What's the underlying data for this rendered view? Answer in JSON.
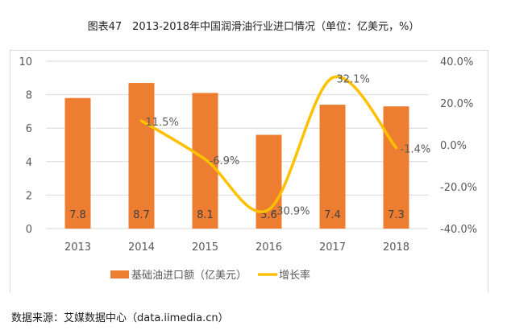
{
  "title": "图表47　2013-2018年中国润滑油行业进口情况（单位：亿美元，%）",
  "source": "数据来源：艾媒数据中心（data.iimedia.cn）",
  "chart_data": {
    "type": "bar+line",
    "categories": [
      "2013",
      "2014",
      "2015",
      "2016",
      "2017",
      "2018"
    ],
    "series": [
      {
        "name": "基础油进口额（亿美元）",
        "type": "bar",
        "axis": "left",
        "color": "#ED7D31",
        "values": [
          7.8,
          8.7,
          8.1,
          5.6,
          7.4,
          7.3
        ],
        "labels": [
          "7.8",
          "8.7",
          "8.1",
          "5.6",
          "7.4",
          "7.3"
        ]
      },
      {
        "name": "增长率",
        "type": "line",
        "smooth": true,
        "axis": "right",
        "color": "#FFC000",
        "values": [
          null,
          11.5,
          -6.9,
          -30.9,
          32.1,
          -1.4
        ],
        "labels": [
          "",
          "11.5%",
          "-6.9%",
          "-30.9%",
          "32.1%",
          "-1.4%"
        ]
      }
    ],
    "left_axis": {
      "range": [
        0,
        10
      ],
      "ticks": [
        "0",
        "2",
        "4",
        "6",
        "8",
        "10"
      ]
    },
    "right_axis": {
      "range": [
        -40,
        40
      ],
      "ticks": [
        "-40.0%",
        "-20.0%",
        "0.0%",
        "20.0%",
        "40.0%"
      ]
    },
    "grid": true,
    "legend": "bottom"
  }
}
